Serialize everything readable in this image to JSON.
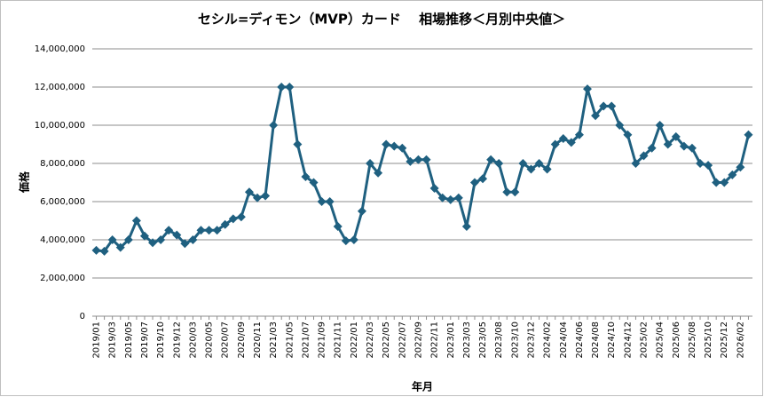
{
  "chart_data": {
    "type": "line",
    "title": "セシル=ディモン（MVP）カード　 相場推移＜月別中央値＞",
    "x_label": "年月",
    "y_label": "価格",
    "categories": [
      "2019/01",
      null,
      "2019/03",
      null,
      "2019/05",
      null,
      "2019/07",
      null,
      "2019/10",
      null,
      "2019/12",
      null,
      "2020/03",
      null,
      "2020/05",
      null,
      "2020/07",
      null,
      "2020/09",
      null,
      "2020/11",
      null,
      "2021/03",
      null,
      "2021/05",
      null,
      "2021/07",
      null,
      "2021/09",
      null,
      "2021/11",
      null,
      "2022/01",
      null,
      "2022/03",
      null,
      "2022/05",
      null,
      "2022/07",
      null,
      "2022/09",
      null,
      "2022/11",
      null,
      "2023/01",
      null,
      "2023/03",
      null,
      "2023/05",
      null,
      "2023/08",
      null,
      "2023/10",
      null,
      "2023/12",
      null,
      "2024/02",
      null,
      "2024/04",
      null,
      "2024/06",
      null,
      "2024/08",
      null,
      "2024/10",
      null,
      "2024/12",
      null,
      "2025/02",
      null,
      "2025/04",
      null,
      "2025/06",
      null,
      "2025/08",
      null,
      "2025/10",
      null,
      "2025/12",
      null,
      "2026/02",
      null
    ],
    "series": [
      {
        "name": "価格",
        "color": "#1f6080",
        "values": [
          3450000,
          3400000,
          4000000,
          3600000,
          4000000,
          5000000,
          4200000,
          3850000,
          4000000,
          4500000,
          4250000,
          3800000,
          4000000,
          4500000,
          4500000,
          4500000,
          4800000,
          5100000,
          5200000,
          6500000,
          6200000,
          6300000,
          10000000,
          12000000,
          12000000,
          9000000,
          7300000,
          7000000,
          6000000,
          6000000,
          4700000,
          3950000,
          4000000,
          5500000,
          8000000,
          7500000,
          9000000,
          8900000,
          8800000,
          8100000,
          8200000,
          8200000,
          6700000,
          6200000,
          6100000,
          6200000,
          4700000,
          7000000,
          7200000,
          8200000,
          8000000,
          6500000,
          6500000,
          8000000,
          7700000,
          8000000,
          7700000,
          9000000,
          9300000,
          9100000,
          9500000,
          11900000,
          10500000,
          11000000,
          11000000,
          10000000,
          9500000,
          8000000,
          8400000,
          8800000,
          10000000,
          9000000,
          9400000,
          8900000,
          8800000,
          8000000,
          7900000,
          7000000,
          7000000,
          7400000,
          7800000,
          9500000
        ]
      }
    ],
    "ylim": [
      0,
      14000000
    ],
    "yticks": [
      0,
      {
        "value": 2000000,
        "label": "2,000,000"
      },
      {
        "value": 4000000,
        "label": "4,000,000"
      },
      {
        "value": 6000000,
        "label": "6,000,000"
      },
      {
        "value": 8000000,
        "label": "8,000,000"
      },
      {
        "value": 10000000,
        "label": "10,000,000"
      },
      {
        "value": 12000000,
        "label": "12,000,000"
      },
      {
        "value": 14000000,
        "label": "14,000,000"
      }
    ],
    "grid": true
  }
}
